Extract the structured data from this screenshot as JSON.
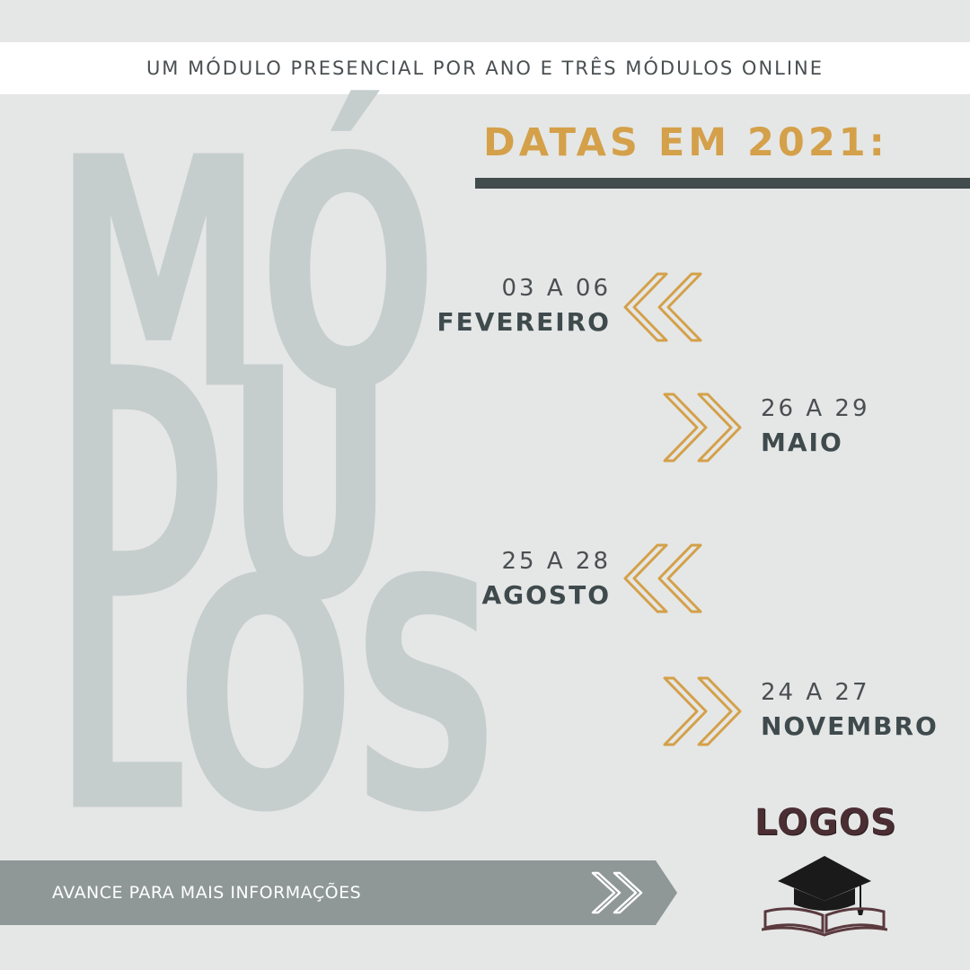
{
  "banner": {
    "text": "UM MÓDULO PRESENCIAL POR ANO E TRÊS MÓDULOS ONLINE"
  },
  "big_word": {
    "line1": "MÓ",
    "line2": "DU",
    "line3": "LOS"
  },
  "title": "DATAS EM 2021:",
  "dates": [
    {
      "range": "03 A 06",
      "month": "FEVEREIRO"
    },
    {
      "range": "26 A 29",
      "month": "MAIO"
    },
    {
      "range": "25 A 28",
      "month": "AGOSTO"
    },
    {
      "range": "24 A 27",
      "month": "NOVEMBRO"
    }
  ],
  "footer": {
    "text": "AVANCE PARA MAIS INFORMAÇÕES"
  },
  "logo": {
    "text": "LOGOS"
  },
  "icons": {
    "chevron_left": "double-chevron-left-icon",
    "chevron_right": "double-chevron-right-icon",
    "footer_arrow": "double-chevron-right-icon",
    "logo": "graduation-cap-book-icon"
  },
  "colors": {
    "background": "#e5e7e6",
    "gold": "#d4a04a",
    "dark_slate": "#424c4d",
    "big_word": "#c6cecd",
    "footer_bar": "#8f9797",
    "logo": "#4a2e33"
  }
}
